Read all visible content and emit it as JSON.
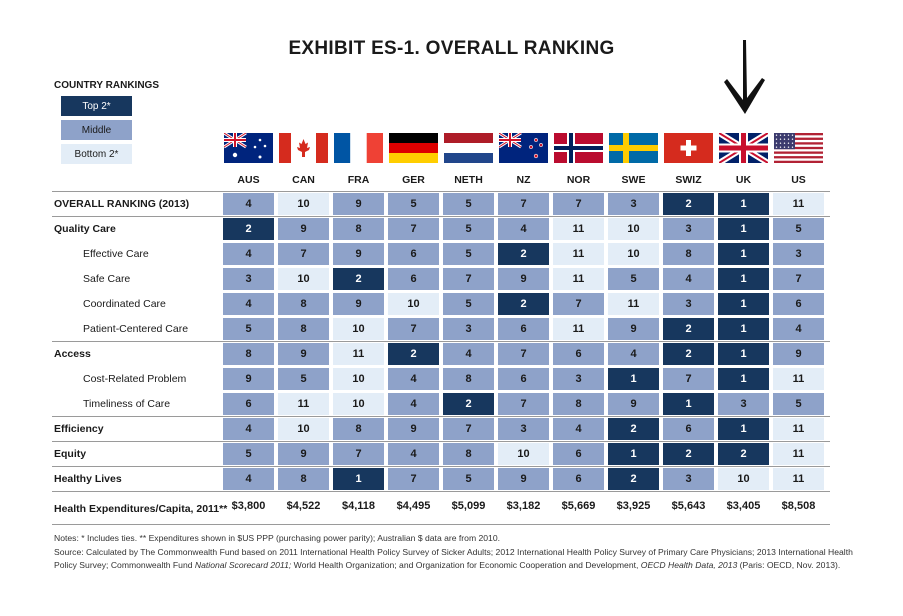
{
  "title": "EXHIBIT ES-1. OVERALL RANKING",
  "legend": {
    "title": "COUNTRY RANKINGS",
    "top": "Top 2*",
    "middle": "Middle",
    "bottom": "Bottom 2*"
  },
  "colors": {
    "top": "#17375e",
    "middle": "#8ea2c9",
    "bottom": "#e3edf7"
  },
  "chart_data": {
    "type": "table",
    "columns": [
      "AUS",
      "CAN",
      "FRA",
      "GER",
      "NETH",
      "NZ",
      "NOR",
      "SWE",
      "SWIZ",
      "UK",
      "US"
    ],
    "rows": [
      {
        "label": "OVERALL RANKING (2013)",
        "style": "bold",
        "values": [
          4,
          10,
          9,
          5,
          5,
          7,
          7,
          3,
          2,
          1,
          11
        ]
      },
      {
        "label": "Quality Care",
        "style": "bold",
        "values": [
          2,
          9,
          8,
          7,
          5,
          4,
          11,
          10,
          3,
          1,
          5
        ]
      },
      {
        "label": "Effective Care",
        "style": "sub",
        "values": [
          4,
          7,
          9,
          6,
          5,
          2,
          11,
          10,
          8,
          1,
          3
        ]
      },
      {
        "label": "Safe Care",
        "style": "sub",
        "values": [
          3,
          10,
          2,
          6,
          7,
          9,
          11,
          5,
          4,
          1,
          7
        ]
      },
      {
        "label": "Coordinated Care",
        "style": "sub",
        "values": [
          4,
          8,
          9,
          10,
          5,
          2,
          7,
          11,
          3,
          1,
          6
        ]
      },
      {
        "label": "Patient-Centered Care",
        "style": "sub",
        "values": [
          5,
          8,
          10,
          7,
          3,
          6,
          11,
          9,
          2,
          1,
          4
        ]
      },
      {
        "label": "Access",
        "style": "bold",
        "values": [
          8,
          9,
          11,
          2,
          4,
          7,
          6,
          4,
          2,
          1,
          9
        ]
      },
      {
        "label": "Cost-Related Problem",
        "style": "sub",
        "values": [
          9,
          5,
          10,
          4,
          8,
          6,
          3,
          1,
          7,
          1,
          11
        ]
      },
      {
        "label": "Timeliness of Care",
        "style": "sub",
        "values": [
          6,
          11,
          10,
          4,
          2,
          7,
          8,
          9,
          1,
          3,
          5
        ]
      },
      {
        "label": "Efficiency",
        "style": "bold",
        "values": [
          4,
          10,
          8,
          9,
          7,
          3,
          4,
          2,
          6,
          1,
          11
        ]
      },
      {
        "label": "Equity",
        "style": "bold",
        "values": [
          5,
          9,
          7,
          4,
          8,
          10,
          6,
          1,
          2,
          2,
          11
        ]
      },
      {
        "label": "Healthy Lives",
        "style": "bold",
        "values": [
          4,
          8,
          1,
          7,
          5,
          9,
          6,
          2,
          3,
          10,
          11
        ]
      }
    ],
    "cell_levels": [
      [
        "mid",
        "bot",
        "mid",
        "mid",
        "mid",
        "mid",
        "mid",
        "mid",
        "top",
        "top",
        "bot"
      ],
      [
        "top",
        "mid",
        "mid",
        "mid",
        "mid",
        "mid",
        "bot",
        "bot",
        "mid",
        "top",
        "mid"
      ],
      [
        "mid",
        "mid",
        "mid",
        "mid",
        "mid",
        "top",
        "bot",
        "bot",
        "mid",
        "top",
        "mid"
      ],
      [
        "mid",
        "bot",
        "top",
        "mid",
        "mid",
        "mid",
        "bot",
        "mid",
        "mid",
        "top",
        "mid"
      ],
      [
        "mid",
        "mid",
        "mid",
        "bot",
        "mid",
        "top",
        "mid",
        "bot",
        "mid",
        "top",
        "mid"
      ],
      [
        "mid",
        "mid",
        "bot",
        "mid",
        "mid",
        "mid",
        "bot",
        "mid",
        "top",
        "top",
        "mid"
      ],
      [
        "mid",
        "mid",
        "bot",
        "top",
        "mid",
        "mid",
        "mid",
        "mid",
        "top",
        "top",
        "mid"
      ],
      [
        "mid",
        "mid",
        "bot",
        "mid",
        "mid",
        "mid",
        "mid",
        "top",
        "mid",
        "top",
        "bot"
      ],
      [
        "mid",
        "bot",
        "bot",
        "mid",
        "top",
        "mid",
        "mid",
        "mid",
        "top",
        "mid",
        "mid"
      ],
      [
        "mid",
        "bot",
        "mid",
        "mid",
        "mid",
        "mid",
        "mid",
        "top",
        "mid",
        "top",
        "bot"
      ],
      [
        "mid",
        "mid",
        "mid",
        "mid",
        "mid",
        "bot",
        "mid",
        "top",
        "top",
        "top",
        "bot"
      ],
      [
        "mid",
        "mid",
        "top",
        "mid",
        "mid",
        "mid",
        "mid",
        "top",
        "mid",
        "bot",
        "bot"
      ]
    ],
    "spending_label": "Health Expenditures/Capita, 2011**",
    "spending": [
      "$3,800",
      "$4,522",
      "$4,118",
      "$4,495",
      "$5,099",
      "$3,182",
      "$5,669",
      "$3,925",
      "$5,643",
      "$3,405",
      "$8,508"
    ]
  },
  "flags": [
    "aus-flag-icon",
    "can-flag-icon",
    "fra-flag-icon",
    "ger-flag-icon",
    "neth-flag-icon",
    "nz-flag-icon",
    "nor-flag-icon",
    "swe-flag-icon",
    "swiz-flag-icon",
    "uk-flag-icon",
    "us-flag-icon"
  ],
  "notes": {
    "line1": "Notes: * Includes ties. ** Expenditures shown in $US PPP (purchasing power parity); Australian $ data are from 2010.",
    "line2": "Source: Calculated by The Commonwealth Fund based on 2011 International Health Policy Survey of Sicker Adults; 2012 International Health Policy Survey of Primary Care Physicians; 2013 International Health",
    "line3a": "Policy Survey; Commonwealth Fund ",
    "line3b": "National Scorecard 2011;",
    "line3c": " World Health Organization; and Organization for Economic Cooperation and Development, ",
    "line3d": "OECD Health Data, 2013",
    "line3e": " (Paris: OECD, Nov. 2013)."
  }
}
